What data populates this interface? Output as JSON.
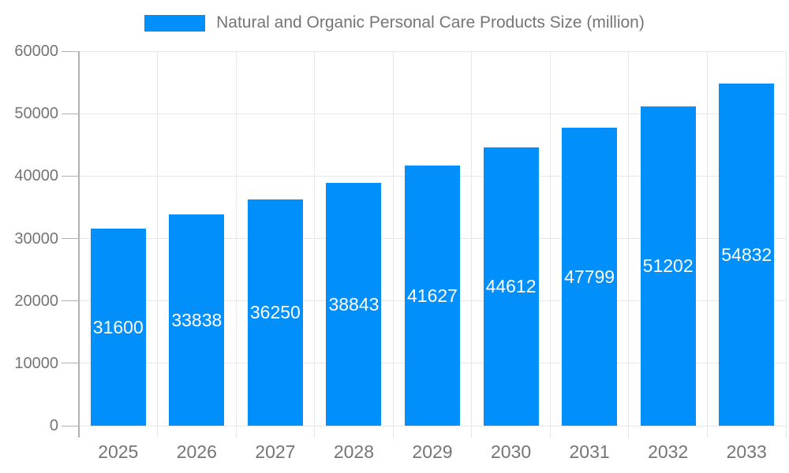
{
  "legend": {
    "label": "Natural and Organic Personal Care Products Size (million)"
  },
  "colors": {
    "bar": "#008FFB",
    "grid": "#e7e7e7",
    "axis_line": "#b1b1b1",
    "axis_text": "#757575",
    "bar_label_text": "#ffffff"
  },
  "chart_data": {
    "type": "bar",
    "title": "Natural and Organic Personal Care Products Size (million)",
    "series_name": "Natural and Organic Personal Care Products Size (million)",
    "categories": [
      "2025",
      "2026",
      "2027",
      "2028",
      "2029",
      "2030",
      "2031",
      "2032",
      "2033"
    ],
    "values": [
      31600,
      33838,
      36250,
      38843,
      41627,
      44612,
      47799,
      51202,
      54832
    ],
    "xlabel": "",
    "ylabel": "",
    "ylim": [
      0,
      60000
    ],
    "yticks": [
      0,
      10000,
      20000,
      30000,
      40000,
      50000,
      60000
    ],
    "grid": true,
    "legend_position": "top-center",
    "data_labels": "inside-center"
  }
}
